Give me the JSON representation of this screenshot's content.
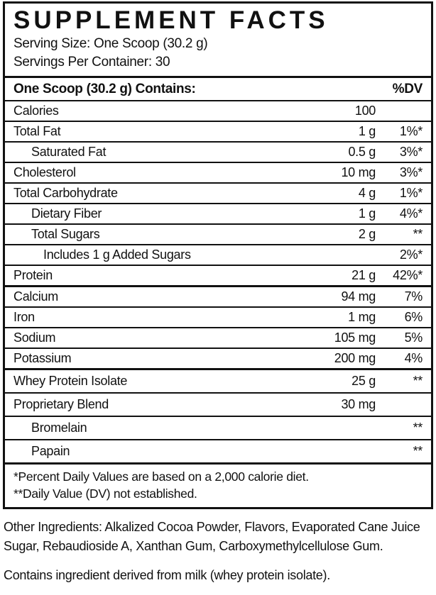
{
  "label": {
    "title": "SUPPLEMENT FACTS",
    "serving_size": "Serving Size: One Scoop (30.2 g)",
    "servings_per_container": "Servings Per Container: 30",
    "column_header": {
      "contains": "One Scoop (30.2 g) Contains:",
      "dv": "%DV"
    },
    "rows": [
      {
        "name": "Calories",
        "amount": "100",
        "dv": "",
        "indent": 0,
        "thick": false,
        "tall": false
      },
      {
        "name": "Total Fat",
        "amount": "1 g",
        "dv": "1%*",
        "indent": 0,
        "thick": false,
        "tall": false
      },
      {
        "name": "Saturated Fat",
        "amount": "0.5 g",
        "dv": "3%*",
        "indent": 1,
        "thick": false,
        "tall": false
      },
      {
        "name": "Cholesterol",
        "amount": "10 mg",
        "dv": "3%*",
        "indent": 0,
        "thick": false,
        "tall": false
      },
      {
        "name": "Total Carbohydrate",
        "amount": "4 g",
        "dv": "1%*",
        "indent": 0,
        "thick": false,
        "tall": false
      },
      {
        "name": "Dietary Fiber",
        "amount": "1 g",
        "dv": "4%*",
        "indent": 1,
        "thick": false,
        "tall": false
      },
      {
        "name": "Total Sugars",
        "amount": "2 g",
        "dv": "**",
        "indent": 1,
        "thick": false,
        "tall": false
      },
      {
        "name": "Includes 1 g Added Sugars",
        "amount": "",
        "dv": "2%*",
        "indent": 2,
        "thick": false,
        "tall": false
      },
      {
        "name": "Protein",
        "amount": "21 g",
        "dv": "42%*",
        "indent": 0,
        "thick": false,
        "tall": false
      },
      {
        "name": "Calcium",
        "amount": "94 mg",
        "dv": "7%",
        "indent": 0,
        "thick": true,
        "tall": false
      },
      {
        "name": "Iron",
        "amount": "1 mg",
        "dv": "6%",
        "indent": 0,
        "thick": false,
        "tall": false
      },
      {
        "name": "Sodium",
        "amount": "105 mg",
        "dv": "5%",
        "indent": 0,
        "thick": false,
        "tall": false
      },
      {
        "name": "Potassium",
        "amount": "200 mg",
        "dv": "4%",
        "indent": 0,
        "thick": false,
        "tall": false
      },
      {
        "name": "Whey Protein Isolate",
        "amount": "25 g",
        "dv": "**",
        "indent": 0,
        "thick": true,
        "tall": true
      },
      {
        "name": "Proprietary Blend",
        "amount": "30 mg",
        "dv": "",
        "indent": 0,
        "thick": false,
        "tall": true
      },
      {
        "name": "Bromelain",
        "amount": "",
        "dv": "**",
        "indent": 1,
        "thick": false,
        "tall": true
      },
      {
        "name": "Papain",
        "amount": "",
        "dv": "**",
        "indent": 1,
        "thick": false,
        "tall": true
      }
    ],
    "footnotes": [
      "*Percent Daily Values are based on a 2,000 calorie diet.",
      "**Daily Value (DV) not established."
    ],
    "other_ingredients": "Other Ingredients: Alkalized Cocoa Powder, Flavors, Evaporated Cane Juice Sugar, Rebaudioside A, Xanthan Gum, Carboxymethylcellulose Gum.",
    "allergen_statement": "Contains ingredient derived from milk (whey protein isolate)."
  }
}
